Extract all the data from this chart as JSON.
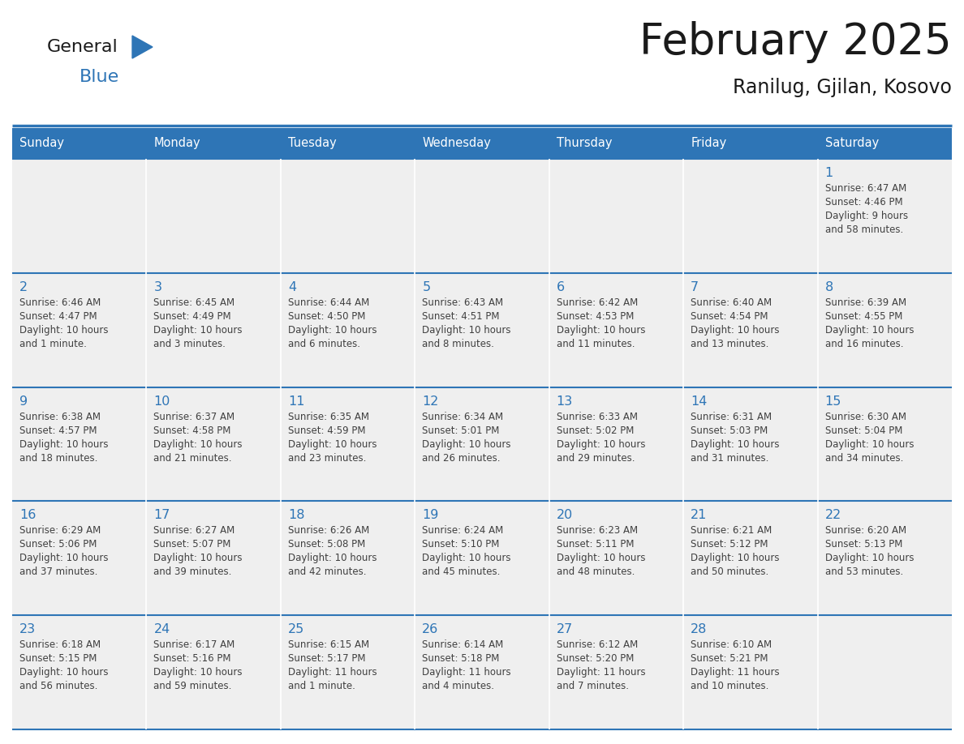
{
  "title": "February 2025",
  "subtitle": "Ranilug, Gjilan, Kosovo",
  "header_color": "#2E75B6",
  "header_text_color": "#FFFFFF",
  "cell_bg_color": "#EFEFEF",
  "day_number_color": "#2E75B6",
  "text_color": "#404040",
  "line_color": "#2E75B6",
  "days_of_week": [
    "Sunday",
    "Monday",
    "Tuesday",
    "Wednesday",
    "Thursday",
    "Friday",
    "Saturday"
  ],
  "weeks": [
    [
      {
        "day": "",
        "sunrise": "",
        "sunset": "",
        "daylight": ""
      },
      {
        "day": "",
        "sunrise": "",
        "sunset": "",
        "daylight": ""
      },
      {
        "day": "",
        "sunrise": "",
        "sunset": "",
        "daylight": ""
      },
      {
        "day": "",
        "sunrise": "",
        "sunset": "",
        "daylight": ""
      },
      {
        "day": "",
        "sunrise": "",
        "sunset": "",
        "daylight": ""
      },
      {
        "day": "",
        "sunrise": "",
        "sunset": "",
        "daylight": ""
      },
      {
        "day": "1",
        "sunrise": "6:47 AM",
        "sunset": "4:46 PM",
        "daylight": "9 hours and 58 minutes."
      }
    ],
    [
      {
        "day": "2",
        "sunrise": "6:46 AM",
        "sunset": "4:47 PM",
        "daylight": "10 hours and 1 minute."
      },
      {
        "day": "3",
        "sunrise": "6:45 AM",
        "sunset": "4:49 PM",
        "daylight": "10 hours and 3 minutes."
      },
      {
        "day": "4",
        "sunrise": "6:44 AM",
        "sunset": "4:50 PM",
        "daylight": "10 hours and 6 minutes."
      },
      {
        "day": "5",
        "sunrise": "6:43 AM",
        "sunset": "4:51 PM",
        "daylight": "10 hours and 8 minutes."
      },
      {
        "day": "6",
        "sunrise": "6:42 AM",
        "sunset": "4:53 PM",
        "daylight": "10 hours and 11 minutes."
      },
      {
        "day": "7",
        "sunrise": "6:40 AM",
        "sunset": "4:54 PM",
        "daylight": "10 hours and 13 minutes."
      },
      {
        "day": "8",
        "sunrise": "6:39 AM",
        "sunset": "4:55 PM",
        "daylight": "10 hours and 16 minutes."
      }
    ],
    [
      {
        "day": "9",
        "sunrise": "6:38 AM",
        "sunset": "4:57 PM",
        "daylight": "10 hours and 18 minutes."
      },
      {
        "day": "10",
        "sunrise": "6:37 AM",
        "sunset": "4:58 PM",
        "daylight": "10 hours and 21 minutes."
      },
      {
        "day": "11",
        "sunrise": "6:35 AM",
        "sunset": "4:59 PM",
        "daylight": "10 hours and 23 minutes."
      },
      {
        "day": "12",
        "sunrise": "6:34 AM",
        "sunset": "5:01 PM",
        "daylight": "10 hours and 26 minutes."
      },
      {
        "day": "13",
        "sunrise": "6:33 AM",
        "sunset": "5:02 PM",
        "daylight": "10 hours and 29 minutes."
      },
      {
        "day": "14",
        "sunrise": "6:31 AM",
        "sunset": "5:03 PM",
        "daylight": "10 hours and 31 minutes."
      },
      {
        "day": "15",
        "sunrise": "6:30 AM",
        "sunset": "5:04 PM",
        "daylight": "10 hours and 34 minutes."
      }
    ],
    [
      {
        "day": "16",
        "sunrise": "6:29 AM",
        "sunset": "5:06 PM",
        "daylight": "10 hours and 37 minutes."
      },
      {
        "day": "17",
        "sunrise": "6:27 AM",
        "sunset": "5:07 PM",
        "daylight": "10 hours and 39 minutes."
      },
      {
        "day": "18",
        "sunrise": "6:26 AM",
        "sunset": "5:08 PM",
        "daylight": "10 hours and 42 minutes."
      },
      {
        "day": "19",
        "sunrise": "6:24 AM",
        "sunset": "5:10 PM",
        "daylight": "10 hours and 45 minutes."
      },
      {
        "day": "20",
        "sunrise": "6:23 AM",
        "sunset": "5:11 PM",
        "daylight": "10 hours and 48 minutes."
      },
      {
        "day": "21",
        "sunrise": "6:21 AM",
        "sunset": "5:12 PM",
        "daylight": "10 hours and 50 minutes."
      },
      {
        "day": "22",
        "sunrise": "6:20 AM",
        "sunset": "5:13 PM",
        "daylight": "10 hours and 53 minutes."
      }
    ],
    [
      {
        "day": "23",
        "sunrise": "6:18 AM",
        "sunset": "5:15 PM",
        "daylight": "10 hours and 56 minutes."
      },
      {
        "day": "24",
        "sunrise": "6:17 AM",
        "sunset": "5:16 PM",
        "daylight": "10 hours and 59 minutes."
      },
      {
        "day": "25",
        "sunrise": "6:15 AM",
        "sunset": "5:17 PM",
        "daylight": "11 hours and 1 minute."
      },
      {
        "day": "26",
        "sunrise": "6:14 AM",
        "sunset": "5:18 PM",
        "daylight": "11 hours and 4 minutes."
      },
      {
        "day": "27",
        "sunrise": "6:12 AM",
        "sunset": "5:20 PM",
        "daylight": "11 hours and 7 minutes."
      },
      {
        "day": "28",
        "sunrise": "6:10 AM",
        "sunset": "5:21 PM",
        "daylight": "11 hours and 10 minutes."
      },
      {
        "day": "",
        "sunrise": "",
        "sunset": "",
        "daylight": ""
      }
    ]
  ]
}
